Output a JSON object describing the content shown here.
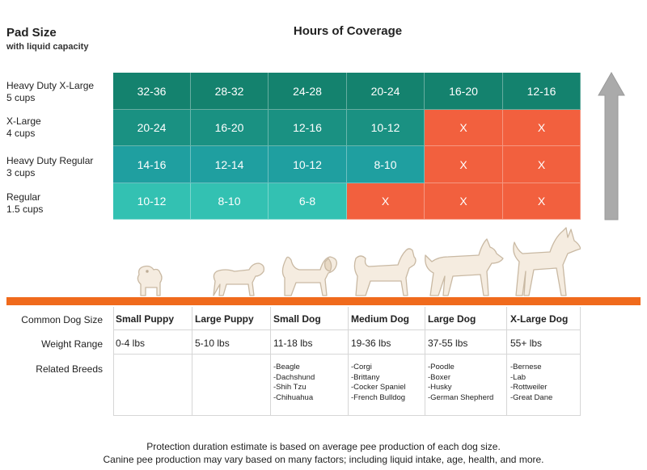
{
  "header": {
    "pad_title": "Pad Size",
    "pad_subtitle": "with liquid capacity",
    "coverage_title": "Hours of Coverage"
  },
  "rows": [
    {
      "name": "Heavy Duty X-Large",
      "capacity": "5 cups",
      "cells": [
        "32-36",
        "28-32",
        "24-28",
        "20-24",
        "16-20",
        "12-16"
      ],
      "colors": [
        "#14826e",
        "#14826e",
        "#14826e",
        "#14826e",
        "#14826e",
        "#14826e"
      ]
    },
    {
      "name": "X-Large",
      "capacity": "4 cups",
      "cells": [
        "20-24",
        "16-20",
        "12-16",
        "10-12",
        "X",
        "X"
      ],
      "colors": [
        "#1a9182",
        "#1a9182",
        "#1a9182",
        "#1a9182",
        "#f2603e",
        "#f2603e"
      ]
    },
    {
      "name": "Heavy Duty Regular",
      "capacity": "3 cups",
      "cells": [
        "14-16",
        "12-14",
        "10-12",
        "8-10",
        "X",
        "X"
      ],
      "colors": [
        "#1f9fa0",
        "#1f9fa0",
        "#1f9fa0",
        "#1f9fa0",
        "#f2603e",
        "#f2603e"
      ]
    },
    {
      "name": "Regular",
      "capacity": "1.5 cups",
      "cells": [
        "10-12",
        "8-10",
        "6-8",
        "X",
        "X",
        "X"
      ],
      "colors": [
        "#33c1b2",
        "#33c1b2",
        "#33c1b2",
        "#f2603e",
        "#f2603e",
        "#f2603e"
      ]
    }
  ],
  "table": {
    "labels": {
      "size": "Common Dog Size",
      "weight": "Weight Range",
      "breeds": "Related Breeds"
    },
    "columns": [
      {
        "size": "Small Puppy",
        "weight": "0-4 lbs",
        "breeds": []
      },
      {
        "size": "Large Puppy",
        "weight": "5-10 lbs",
        "breeds": []
      },
      {
        "size": "Small Dog",
        "weight": "11-18 lbs",
        "breeds": [
          "-Beagle",
          "-Dachshund",
          "-Shih Tzu",
          "-Chihuahua"
        ]
      },
      {
        "size": "Medium Dog",
        "weight": "19-36 lbs",
        "breeds": [
          "-Corgi",
          "-Brittany",
          "-Cocker Spaniel",
          "-French Bulldog"
        ]
      },
      {
        "size": "Large Dog",
        "weight": "37-55 lbs",
        "breeds": [
          "-Poodle",
          "-Boxer",
          "-Husky",
          "-German Shepherd"
        ]
      },
      {
        "size": "X-Large Dog",
        "weight": "55+ lbs",
        "breeds": [
          "-Bernese",
          "-Lab",
          "-Rottweiler",
          "-Great Dane"
        ]
      }
    ]
  },
  "footer": {
    "line1": "Protection duration estimate is based on average pee production of each dog size.",
    "line2": "Canine pee production may vary based on many factors; including liquid intake, age, health, and more."
  },
  "colors": {
    "band": "#f06a1c",
    "arrow": "#aaaaaa",
    "dog_fill": "#f5ece0",
    "dog_stroke": "#c9b9a3"
  }
}
